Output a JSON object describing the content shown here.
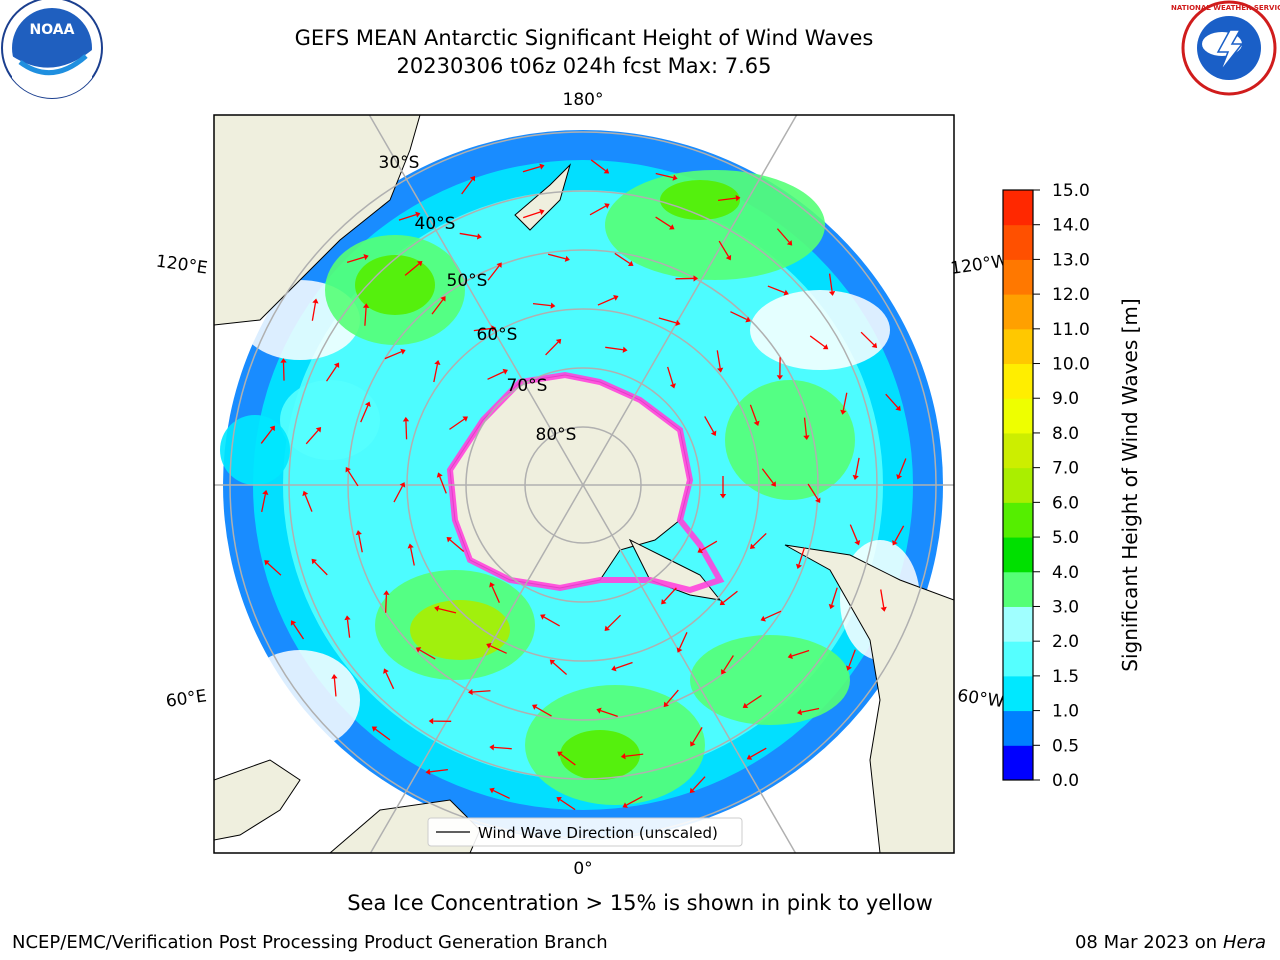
{
  "title": {
    "line1": "GEFS MEAN Antarctic Significant Height of Wind Waves",
    "line2": "20230306 t06z 024h fcst   Max: 7.65"
  },
  "logos": {
    "left": "noaa-logo",
    "right": "national-weather-service-logo",
    "left_text": "NOAA",
    "right_text": "NATIONAL WEATHER SERVICE"
  },
  "map": {
    "projection": "south-polar-stereographic",
    "longitude_labels": {
      "top": "180°",
      "bottom": "0°",
      "left_upper": "120°E",
      "left_lower": "60°E",
      "right_upper": "120°W",
      "right_lower": "60°W"
    },
    "latitude_labels": [
      "30°S",
      "40°S",
      "50°S",
      "60°S",
      "70°S",
      "80°S"
    ],
    "legend_label": "Wind Wave Direction (unscaled)",
    "arrow_color": "#ff0000",
    "land_color": "#efefde",
    "sea_ice_color": "#ff44dd"
  },
  "colorbar": {
    "title": "Significant Height of Wind Waves [m]",
    "ticks": [
      "0.0",
      "0.5",
      "1.0",
      "1.5",
      "2.0",
      "3.0",
      "4.0",
      "5.0",
      "6.0",
      "7.0",
      "8.0",
      "9.0",
      "10.0",
      "11.0",
      "12.0",
      "13.0",
      "14.0",
      "15.0"
    ],
    "colors": [
      "#0000ff",
      "#0080ff",
      "#00e8ff",
      "#55ffff",
      "#a0ffff",
      "#55ff77",
      "#00e000",
      "#55ee00",
      "#aaee00",
      "#ccee00",
      "#eeff00",
      "#ffee00",
      "#ffc800",
      "#ffa000",
      "#ff7800",
      "#ff5000",
      "#ff2800"
    ]
  },
  "footer": {
    "note": "Sea Ice Concentration > 15% is shown in pink to yellow",
    "left": "NCEP/EMC/Verification Post Processing Product Generation Branch",
    "right_date": "08 Mar 2023 on",
    "right_machine": "Hera"
  }
}
